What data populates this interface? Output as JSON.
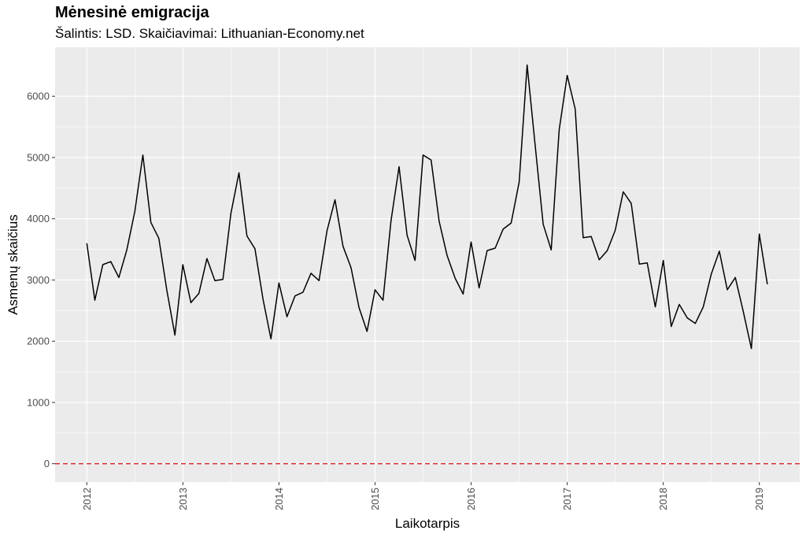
{
  "header": {
    "title": "Mėnesinė emigracija",
    "subtitle": "Šalintis: LSD. Skaičiavimai: Lithuanian-Economy.net"
  },
  "chart_data": {
    "type": "line",
    "title": "Mėnesinė emigracija",
    "subtitle": "Šalintis: LSD. Skaičiavimai: Lithuanian-Economy.net",
    "xlabel": "Laikotarpis",
    "ylabel": "Asmenų skaičius",
    "x_tick_labels": [
      "2012",
      "2013",
      "2014",
      "2015",
      "2016",
      "2017",
      "2018",
      "2019"
    ],
    "y_tick_labels": [
      "0",
      "1000",
      "2000",
      "3000",
      "4000",
      "5000",
      "6000"
    ],
    "x_ticks": [
      2012,
      2013,
      2014,
      2015,
      2016,
      2017,
      2018,
      2019
    ],
    "y_ticks": [
      0,
      1000,
      2000,
      3000,
      4000,
      5000,
      6000
    ],
    "xlim": [
      2011.67,
      2019.42
    ],
    "ylim": [
      -300,
      6800
    ],
    "grid": true,
    "reference_line": {
      "y": 0,
      "color": "#d62728",
      "style": "dashed"
    },
    "colors": {
      "line": "#000000",
      "panel": "#ebebeb",
      "grid": "#ffffff"
    },
    "series": [
      {
        "x": [
          "2012-01",
          "2012-02",
          "2012-03",
          "2012-04",
          "2012-05",
          "2012-06",
          "2012-07",
          "2012-08",
          "2012-09",
          "2012-10",
          "2012-11",
          "2012-12",
          "2013-01",
          "2013-02",
          "2013-03",
          "2013-04",
          "2013-05",
          "2013-06",
          "2013-07",
          "2013-08",
          "2013-09",
          "2013-10",
          "2013-11",
          "2013-12",
          "2014-01",
          "2014-02",
          "2014-03",
          "2014-04",
          "2014-05",
          "2014-06",
          "2014-07",
          "2014-08",
          "2014-09",
          "2014-10",
          "2014-11",
          "2014-12",
          "2015-01",
          "2015-02",
          "2015-03",
          "2015-04",
          "2015-05",
          "2015-06",
          "2015-07",
          "2015-08",
          "2015-09",
          "2015-10",
          "2015-11",
          "2015-12",
          "2016-01",
          "2016-02",
          "2016-03",
          "2016-04",
          "2016-05",
          "2016-06",
          "2016-07",
          "2016-08",
          "2016-09",
          "2016-10",
          "2016-11",
          "2016-12",
          "2017-01",
          "2017-02",
          "2017-03",
          "2017-04",
          "2017-05",
          "2017-06",
          "2017-07",
          "2017-08",
          "2017-09",
          "2017-10",
          "2017-11",
          "2017-12",
          "2018-01",
          "2018-02",
          "2018-03",
          "2018-04",
          "2018-05",
          "2018-06",
          "2018-07",
          "2018-08",
          "2018-09",
          "2018-10",
          "2018-11",
          "2018-12",
          "2019-01",
          "2019-02"
        ],
        "values": [
          3600,
          2670,
          3250,
          3300,
          3040,
          3490,
          4120,
          5040,
          3940,
          3680,
          2830,
          2100,
          3250,
          2630,
          2780,
          3350,
          2990,
          3010,
          4090,
          4750,
          3720,
          3510,
          2690,
          2040,
          2950,
          2400,
          2740,
          2800,
          3110,
          2990,
          3800,
          4310,
          3550,
          3200,
          2550,
          2160,
          2840,
          2670,
          3970,
          4850,
          3730,
          3320,
          5040,
          4960,
          3960,
          3400,
          3030,
          2770,
          3620,
          2870,
          3480,
          3520,
          3830,
          3930,
          4600,
          6510,
          5200,
          3910,
          3490,
          5450,
          6340,
          5790,
          3690,
          3710,
          3330,
          3480,
          3810,
          4440,
          4250,
          3260,
          3280,
          2560,
          3320,
          2240,
          2600,
          2380,
          2290,
          2560,
          3100,
          3470,
          2840,
          3040,
          2480,
          1880,
          3750,
          2930
        ]
      }
    ]
  }
}
